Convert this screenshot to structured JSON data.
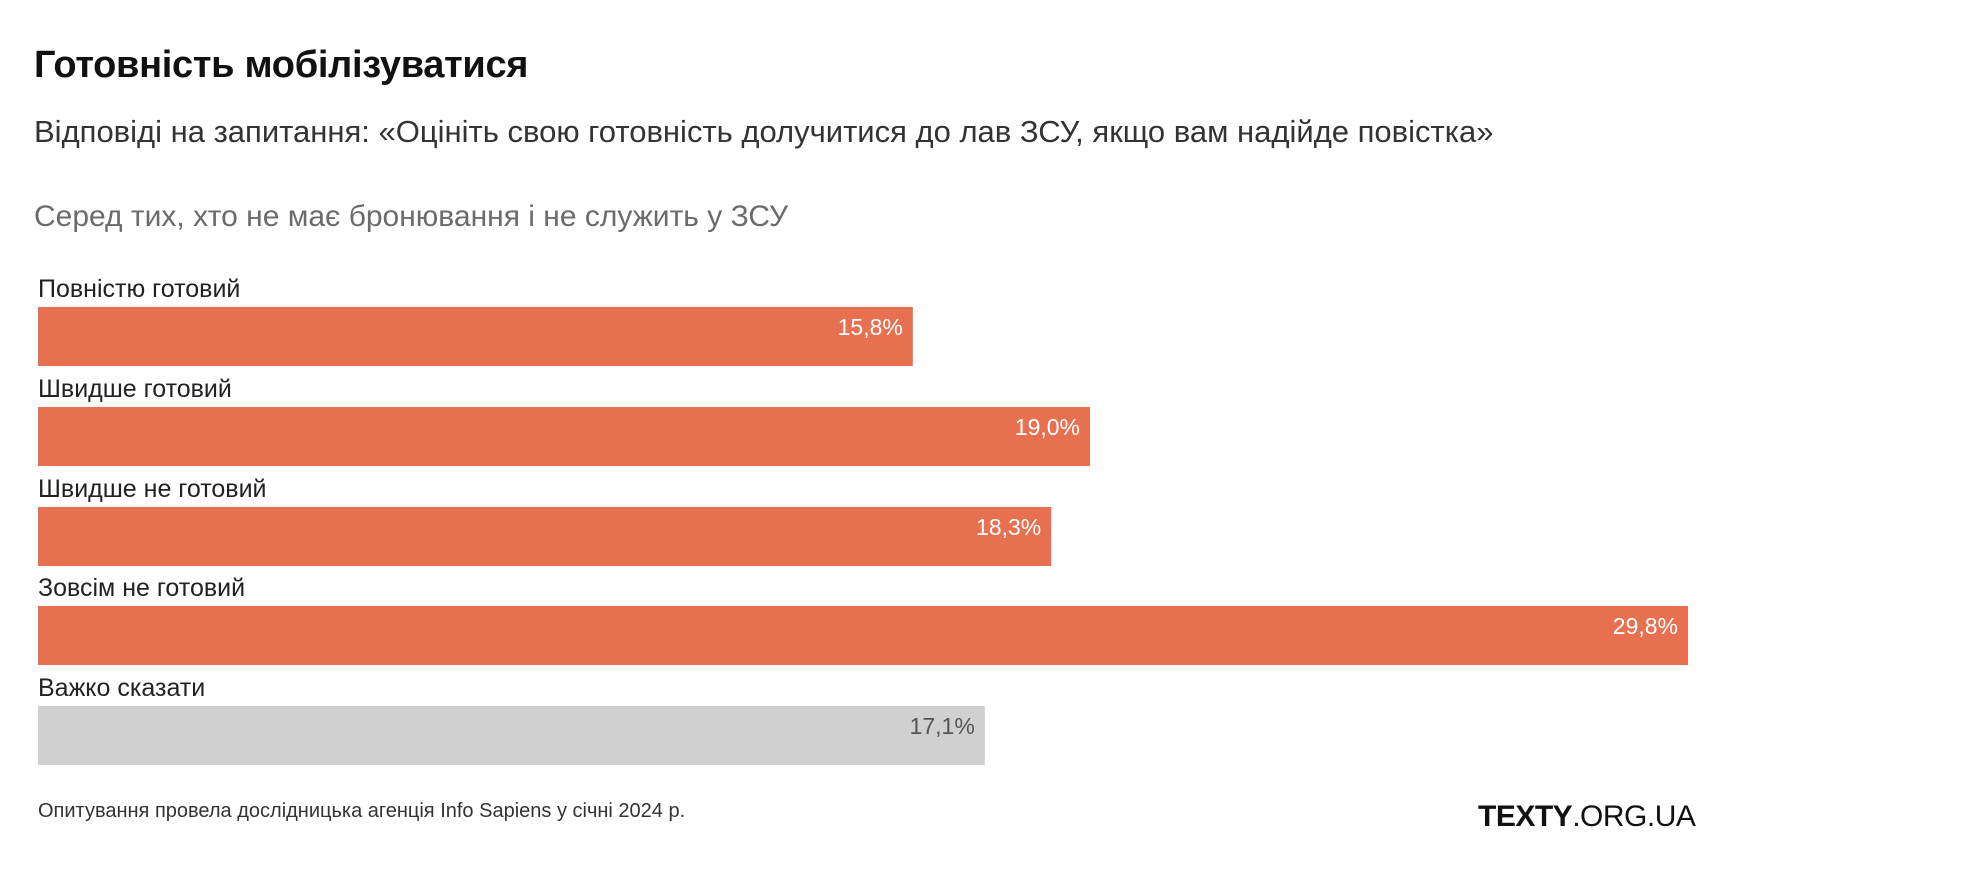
{
  "header": {
    "title": "Готовність мобілізуватися",
    "subtitle": "Відповіді на запитання: «Оцініть свою готовність долучитися до лав ЗСУ, якщо вам надійде повістка»",
    "group_label": "Серед тих, хто не має бронювання і не служить у ЗСУ"
  },
  "footer": {
    "source": "Опитування провела дослідницька агенція Info Sapiens у січні 2024 р.",
    "logo_bold": "TEXTY",
    "logo_rest": ".ORG.UA"
  },
  "colors": {
    "primary_bar": "#e67050",
    "neutral_bar": "#d0d0d0",
    "value_on_primary": "#ffffff",
    "value_on_neutral": "#555555"
  },
  "chart_data": {
    "type": "bar",
    "orientation": "horizontal",
    "categories": [
      "Повністю готовий",
      "Швидше готовий",
      "Швидше не готовий",
      "Зовсім не готовий",
      "Важко сказати"
    ],
    "values": [
      15.8,
      19.0,
      18.3,
      29.8,
      17.1
    ],
    "value_labels": [
      "15,8%",
      "19,0%",
      "18,3%",
      "29,8%",
      "17,1%"
    ],
    "bar_styles": [
      "primary",
      "primary",
      "primary",
      "primary",
      "neutral"
    ],
    "unit": "%",
    "xlim": [
      0,
      29.8
    ],
    "grid": false,
    "legend": "none"
  }
}
